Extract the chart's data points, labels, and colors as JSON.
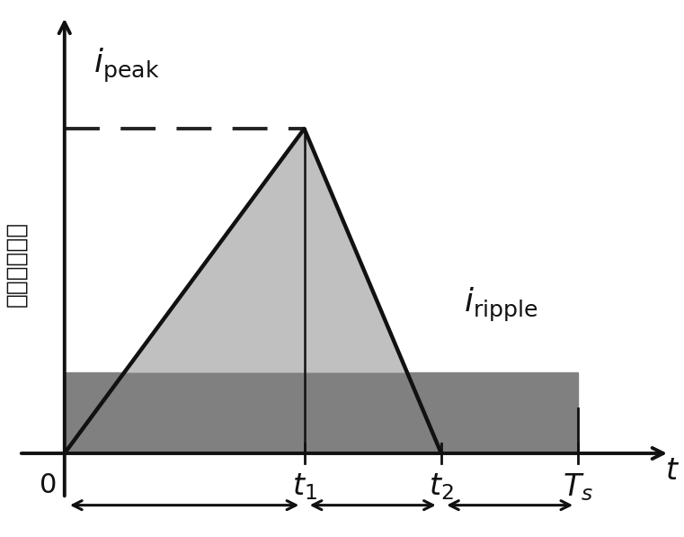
{
  "bg_color": "#ffffff",
  "t1": 0.42,
  "t2": 0.66,
  "ts": 0.9,
  "i_peak": 0.72,
  "i_ripple": 0.18,
  "light_gray": "#c0c0c0",
  "dark_gray": "#808080",
  "line_color": "#111111",
  "dashed_color": "#222222",
  "ylabel_cn": "解耦电感电流"
}
